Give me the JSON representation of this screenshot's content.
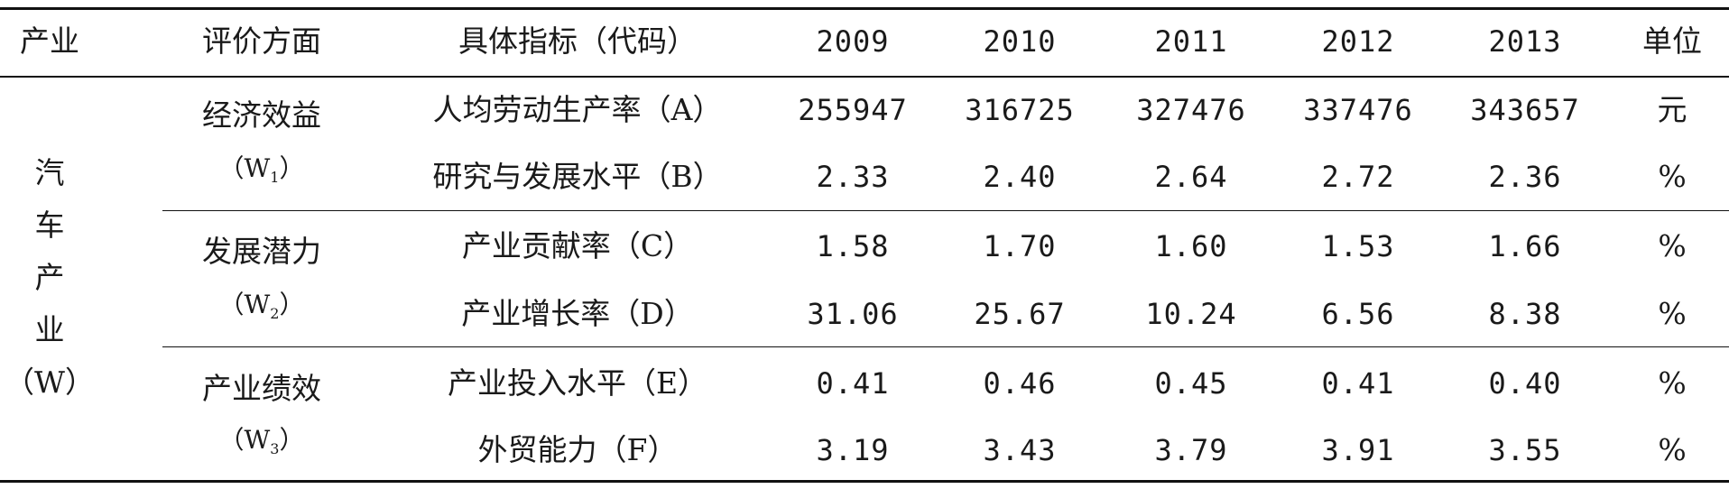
{
  "header": {
    "industry": "产业",
    "aspect": "评价方面",
    "indicator": "具体指标（代码）",
    "years": [
      "2009",
      "2010",
      "2011",
      "2012",
      "2013"
    ],
    "unit": "单位"
  },
  "industry": {
    "chars": [
      "汽",
      "车",
      "产",
      "业",
      "（W）"
    ]
  },
  "groups": [
    {
      "label": "经济效益",
      "code_prefix": "（W",
      "code_sub": "1",
      "code_suffix": "）"
    },
    {
      "label": "发展潜力",
      "code_prefix": "（W",
      "code_sub": "2",
      "code_suffix": "）"
    },
    {
      "label": "产业绩效",
      "code_prefix": "（W",
      "code_sub": "3",
      "code_suffix": "）"
    }
  ],
  "rows": [
    {
      "indicator": "人均劳动生产率（A）",
      "values": [
        "255947",
        "316725",
        "327476",
        "337476",
        "343657"
      ],
      "unit": "元"
    },
    {
      "indicator": "研究与发展水平（B）",
      "values": [
        "2.33",
        "2.40",
        "2.64",
        "2.72",
        "2.36"
      ],
      "unit": "%"
    },
    {
      "indicator": "产业贡献率（C）",
      "values": [
        "1.58",
        "1.70",
        "1.60",
        "1.53",
        "1.66"
      ],
      "unit": "%"
    },
    {
      "indicator": "产业增长率（D）",
      "values": [
        "31.06",
        "25.67",
        "10.24",
        "6.56",
        "8.38"
      ],
      "unit": "%"
    },
    {
      "indicator": "产业投入水平（E）",
      "values": [
        "0.41",
        "0.46",
        "0.45",
        "0.41",
        "0.40"
      ],
      "unit": "%"
    },
    {
      "indicator": "外贸能力（F）",
      "values": [
        "3.19",
        "3.43",
        "3.79",
        "3.91",
        "3.55"
      ],
      "unit": "%"
    }
  ]
}
